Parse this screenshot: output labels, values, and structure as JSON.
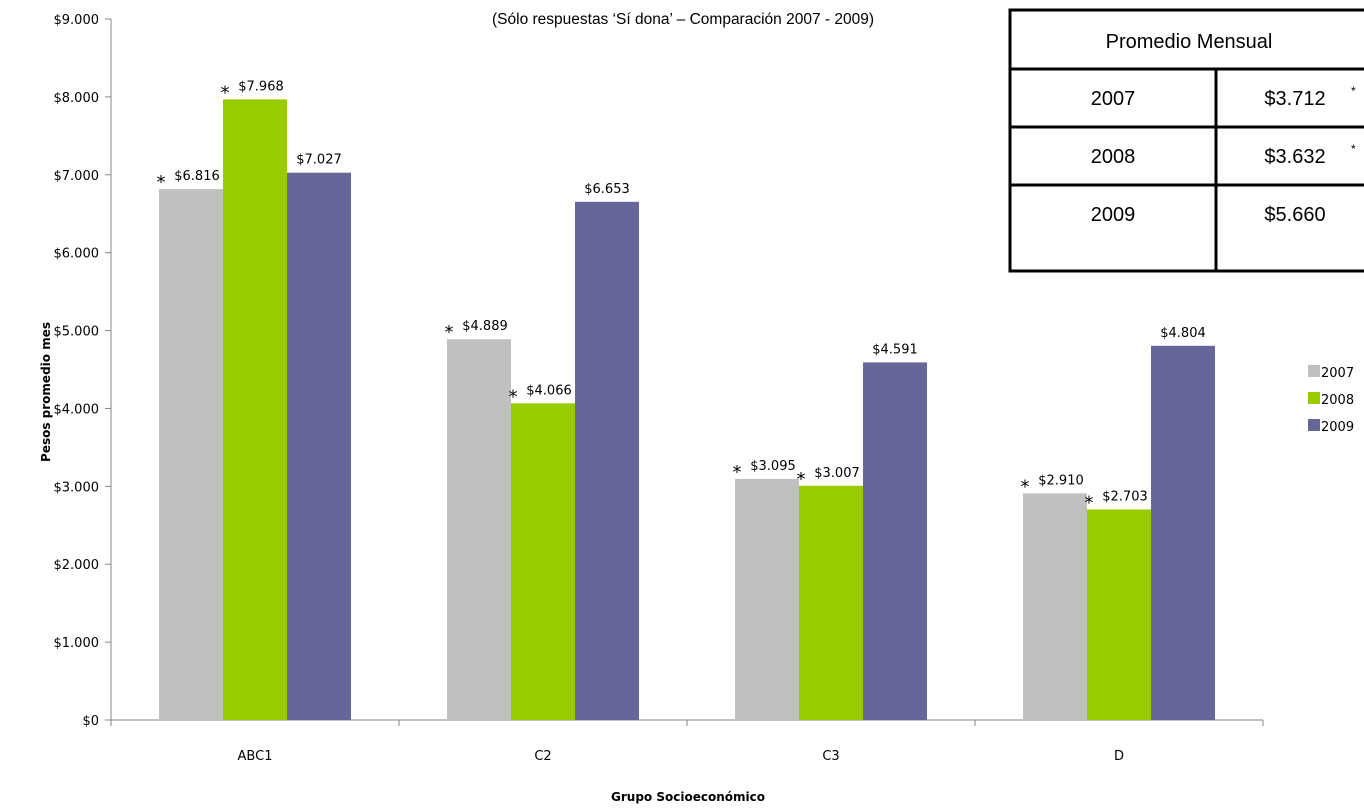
{
  "subtitle": "(Sólo respuestas ‘Sí dona’ – Comparación 2007 - 2009)",
  "chart_data": {
    "type": "bar",
    "xlabel": "Grupo Socioeconómico",
    "ylabel": "Pesos promedio mes",
    "ylim": [
      0,
      9000
    ],
    "y_ticks": [
      {
        "value": 0,
        "label": "$0"
      },
      {
        "value": 1000,
        "label": "$1.000"
      },
      {
        "value": 2000,
        "label": "$2.000"
      },
      {
        "value": 3000,
        "label": "$3.000"
      },
      {
        "value": 4000,
        "label": "$4.000"
      },
      {
        "value": 5000,
        "label": "$5.000"
      },
      {
        "value": 6000,
        "label": "$6.000"
      },
      {
        "value": 7000,
        "label": "$7.000"
      },
      {
        "value": 8000,
        "label": "$8.000"
      },
      {
        "value": 9000,
        "label": "$9.000"
      }
    ],
    "categories": [
      "ABC1",
      "C2",
      "C3",
      "D"
    ],
    "series": [
      {
        "name": "2007",
        "color": "#c0c0c0",
        "values": [
          6816,
          4889,
          3095,
          2910
        ],
        "labels": [
          "$6.816",
          "$4.889",
          "$3.095",
          "$2.910"
        ],
        "starred": [
          true,
          true,
          true,
          true
        ]
      },
      {
        "name": "2008",
        "color": "#99cc00",
        "values": [
          7968,
          4066,
          3007,
          2703
        ],
        "labels": [
          "$7.968",
          "$4.066",
          "$3.007",
          "$2.703"
        ],
        "starred": [
          true,
          true,
          true,
          true
        ]
      },
      {
        "name": "2009",
        "color": "#666699",
        "values": [
          7027,
          6653,
          4591,
          4804
        ],
        "labels": [
          "$7.027",
          "$6.653",
          "$4.591",
          "$4.804"
        ],
        "starred": [
          false,
          false,
          false,
          false
        ]
      }
    ],
    "star_symbol": "*",
    "legend_position": "right",
    "grid": false
  },
  "summary_table": {
    "header": "Promedio Mensual",
    "rows": [
      {
        "year": "2007",
        "value": "$3.712",
        "mark": "*"
      },
      {
        "year": "2008",
        "value": "$3.632",
        "mark": "*"
      },
      {
        "year": "2009",
        "value": "$5.660",
        "mark": ""
      }
    ]
  }
}
